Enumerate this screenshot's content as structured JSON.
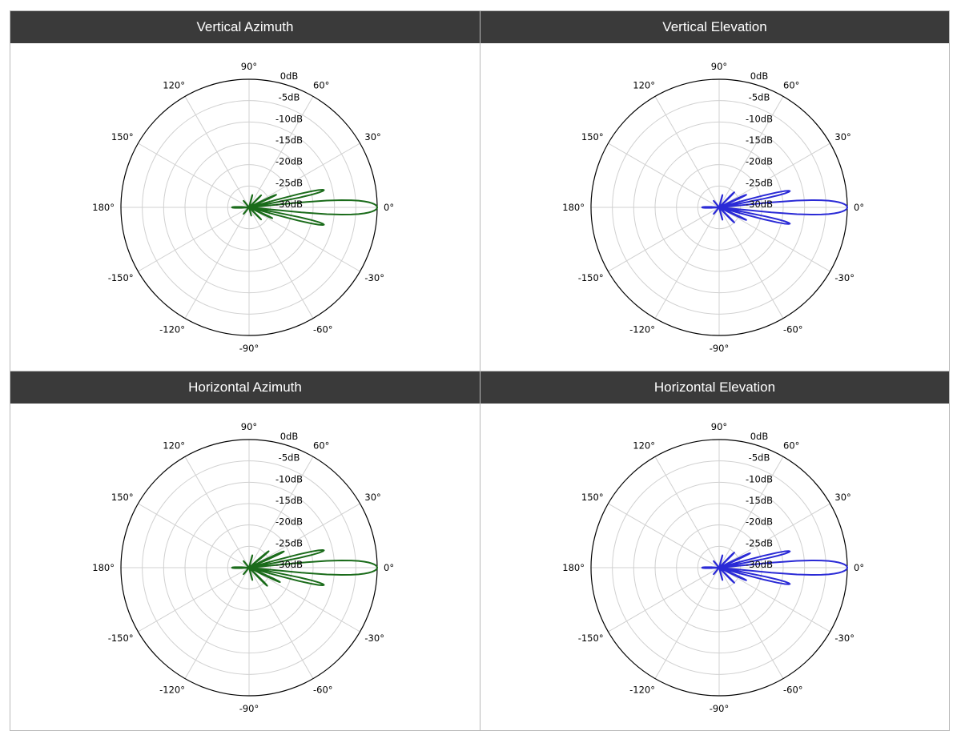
{
  "panels": [
    {
      "title": "Vertical Azimuth"
    },
    {
      "title": "Vertical Elevation"
    },
    {
      "title": "Horizontal Azimuth"
    },
    {
      "title": "Horizontal Elevation"
    }
  ],
  "colors": {
    "green": "#1a6b1a",
    "blue": "#2a2ad6",
    "header_bg": "#3a3a3a"
  },
  "chart_data": [
    {
      "type": "polar",
      "title": "Vertical Azimuth",
      "color": "#1a6b1a",
      "angle_ticks": [
        "0°",
        "30°",
        "60°",
        "90°",
        "120°",
        "150°",
        "180°",
        "-150°",
        "-120°",
        "-90°",
        "-60°",
        "-30°"
      ],
      "radial_ticks": [
        "0dB",
        "-5dB",
        "-10dB",
        "-15dB",
        "-20dB",
        "-25dB",
        "-30dB"
      ],
      "rlim": [
        -30,
        0
      ],
      "grid": true,
      "series": [
        {
          "lobes": [
            {
              "angle": 0,
              "gain": 0,
              "half_width": 6
            },
            {
              "angle": 13,
              "gain": -12,
              "half_width": 3
            },
            {
              "angle": -13,
              "gain": -12,
              "half_width": 3
            },
            {
              "angle": 25,
              "gain": -23,
              "half_width": 2.5
            },
            {
              "angle": -25,
              "gain": -24,
              "half_width": 2.5
            },
            {
              "angle": 45,
              "gain": -26,
              "half_width": 3
            },
            {
              "angle": -45,
              "gain": -26,
              "half_width": 3
            },
            {
              "angle": 75,
              "gain": -27,
              "half_width": 3
            },
            {
              "angle": -75,
              "gain": -28,
              "half_width": 3
            },
            {
              "angle": 130,
              "gain": -28,
              "half_width": 4
            },
            {
              "angle": 180,
              "gain": -26,
              "half_width": 8
            },
            {
              "angle": -130,
              "gain": -28,
              "half_width": 4
            }
          ]
        }
      ]
    },
    {
      "type": "polar",
      "title": "Vertical Elevation",
      "color": "#2a2ad6",
      "angle_ticks": [
        "0°",
        "30°",
        "60°",
        "90°",
        "120°",
        "150°",
        "180°",
        "-150°",
        "-120°",
        "-90°",
        "-60°",
        "-30°"
      ],
      "radial_ticks": [
        "0dB",
        "-5dB",
        "-10dB",
        "-15dB",
        "-20dB",
        "-25dB",
        "-30dB"
      ],
      "rlim": [
        -30,
        0
      ],
      "grid": true,
      "series": [
        {
          "lobes": [
            {
              "angle": 0,
              "gain": 0,
              "half_width": 6
            },
            {
              "angle": 13,
              "gain": -13,
              "half_width": 3
            },
            {
              "angle": -13,
              "gain": -13,
              "half_width": 3
            },
            {
              "angle": 25,
              "gain": -23,
              "half_width": 2.5
            },
            {
              "angle": -25,
              "gain": -23,
              "half_width": 2.5
            },
            {
              "angle": 45,
              "gain": -25,
              "half_width": 3
            },
            {
              "angle": -45,
              "gain": -25,
              "half_width": 3
            },
            {
              "angle": 75,
              "gain": -27,
              "half_width": 3
            },
            {
              "angle": -75,
              "gain": -27,
              "half_width": 3
            },
            {
              "angle": 130,
              "gain": -28,
              "half_width": 4
            },
            {
              "angle": 180,
              "gain": -26,
              "half_width": 8
            },
            {
              "angle": -130,
              "gain": -28,
              "half_width": 4
            }
          ]
        }
      ]
    },
    {
      "type": "polar",
      "title": "Horizontal Azimuth",
      "color": "#1a6b1a",
      "angle_ticks": [
        "0°",
        "30°",
        "60°",
        "90°",
        "120°",
        "150°",
        "180°",
        "-150°",
        "-120°",
        "-90°",
        "-60°",
        "-30°"
      ],
      "radial_ticks": [
        "0dB",
        "-5dB",
        "-10dB",
        "-15dB",
        "-20dB",
        "-25dB",
        "-30dB"
      ],
      "rlim": [
        -30,
        0
      ],
      "grid": true,
      "series": [
        {
          "lobes": [
            {
              "angle": 0,
              "gain": 0,
              "half_width": 6
            },
            {
              "angle": 13,
              "gain": -12,
              "half_width": 3
            },
            {
              "angle": -13,
              "gain": -12,
              "half_width": 3
            },
            {
              "angle": 25,
              "gain": -21,
              "half_width": 2.5
            },
            {
              "angle": -25,
              "gain": -22,
              "half_width": 2.5
            },
            {
              "angle": 40,
              "gain": -24,
              "half_width": 3
            },
            {
              "angle": -45,
              "gain": -24,
              "half_width": 3
            },
            {
              "angle": 75,
              "gain": -27,
              "half_width": 3
            },
            {
              "angle": -75,
              "gain": -27,
              "half_width": 3
            },
            {
              "angle": 130,
              "gain": -28,
              "half_width": 4
            },
            {
              "angle": 180,
              "gain": -26,
              "half_width": 8
            },
            {
              "angle": -130,
              "gain": -28,
              "half_width": 4
            }
          ]
        }
      ]
    },
    {
      "type": "polar",
      "title": "Horizontal Elevation",
      "color": "#2a2ad6",
      "angle_ticks": [
        "0°",
        "30°",
        "60°",
        "90°",
        "120°",
        "150°",
        "180°",
        "-150°",
        "-120°",
        "-90°",
        "-60°",
        "-30°"
      ],
      "radial_ticks": [
        "0dB",
        "-5dB",
        "-10dB",
        "-15dB",
        "-20dB",
        "-25dB",
        "-30dB"
      ],
      "rlim": [
        -30,
        0
      ],
      "grid": true,
      "series": [
        {
          "lobes": [
            {
              "angle": 0,
              "gain": 0,
              "half_width": 6
            },
            {
              "angle": 13,
              "gain": -13,
              "half_width": 3
            },
            {
              "angle": -13,
              "gain": -13,
              "half_width": 3
            },
            {
              "angle": 25,
              "gain": -22,
              "half_width": 2.5
            },
            {
              "angle": -25,
              "gain": -23,
              "half_width": 2.5
            },
            {
              "angle": 45,
              "gain": -25,
              "half_width": 3
            },
            {
              "angle": -45,
              "gain": -25,
              "half_width": 3
            },
            {
              "angle": 75,
              "gain": -27,
              "half_width": 3
            },
            {
              "angle": -75,
              "gain": -27,
              "half_width": 3
            },
            {
              "angle": 130,
              "gain": -28,
              "half_width": 4
            },
            {
              "angle": 180,
              "gain": -26,
              "half_width": 8
            },
            {
              "angle": -130,
              "gain": -28,
              "half_width": 4
            }
          ]
        }
      ]
    }
  ]
}
